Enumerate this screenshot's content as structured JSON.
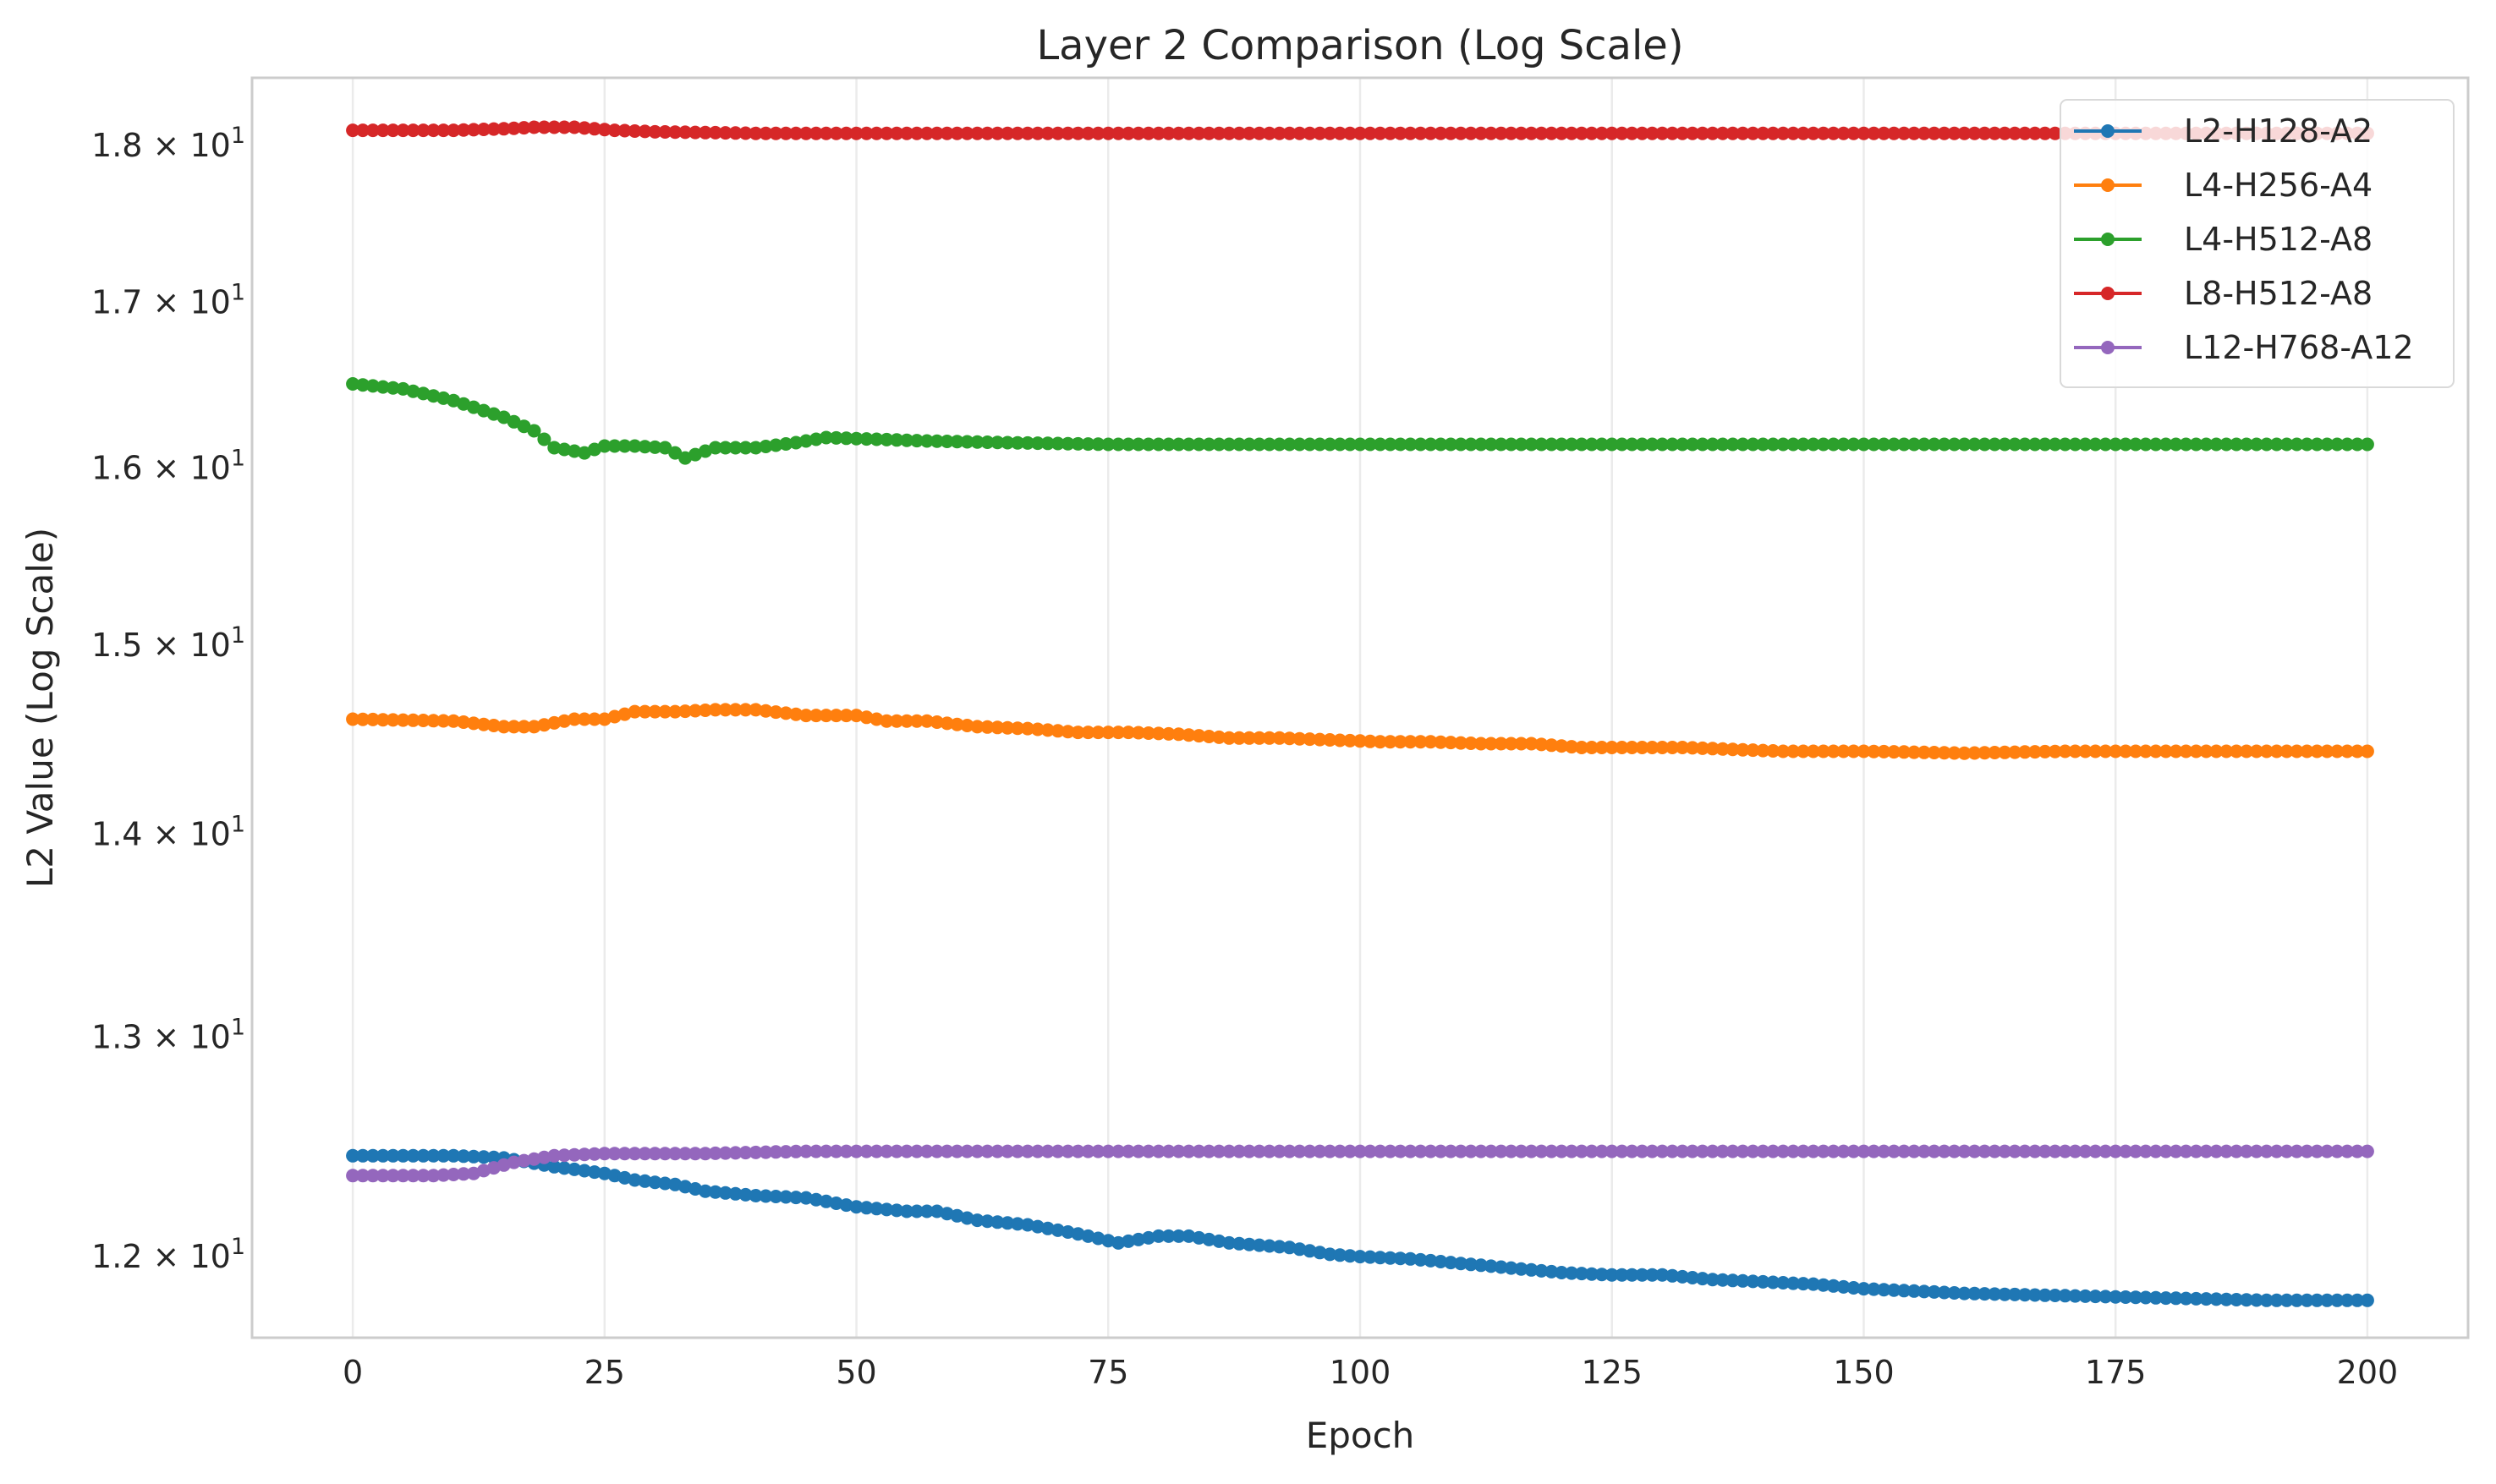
{
  "chart_data": {
    "type": "line",
    "title": "Layer 2 Comparison (Log Scale)",
    "xlabel": "Epoch",
    "ylabel": "L2 Value (Log Scale)",
    "yscale": "log",
    "xlim": [
      -10,
      210
    ],
    "ylim": [
      11.65,
      18.45
    ],
    "xticks": [
      0,
      25,
      50,
      75,
      100,
      125,
      150,
      175,
      200
    ],
    "xtick_labels": [
      "0",
      "25",
      "50",
      "75",
      "100",
      "125",
      "150",
      "175",
      "200"
    ],
    "yticks": [
      12,
      13,
      14,
      15,
      16,
      17,
      18
    ],
    "ytick_labels": [
      {
        "mantissa": "1.2",
        "exp": "1"
      },
      {
        "mantissa": "1.3",
        "exp": "1"
      },
      {
        "mantissa": "1.4",
        "exp": "1"
      },
      {
        "mantissa": "1.5",
        "exp": "1"
      },
      {
        "mantissa": "1.6",
        "exp": "1"
      },
      {
        "mantissa": "1.7",
        "exp": "1"
      },
      {
        "mantissa": "1.8",
        "exp": "1"
      }
    ],
    "grid": true,
    "legend_position": "top-right",
    "series": [
      {
        "name": "L2-H128-A2",
        "color": "#1f77b4",
        "points": [
          [
            0,
            12.45
          ],
          [
            10,
            12.45
          ],
          [
            15,
            12.44
          ],
          [
            20,
            12.4
          ],
          [
            25,
            12.37
          ],
          [
            28,
            12.34
          ],
          [
            32,
            12.32
          ],
          [
            35,
            12.29
          ],
          [
            40,
            12.27
          ],
          [
            45,
            12.26
          ],
          [
            50,
            12.22
          ],
          [
            55,
            12.2
          ],
          [
            58,
            12.2
          ],
          [
            62,
            12.16
          ],
          [
            67,
            12.14
          ],
          [
            72,
            12.1
          ],
          [
            76,
            12.06
          ],
          [
            80,
            12.09
          ],
          [
            83,
            12.09
          ],
          [
            87,
            12.06
          ],
          [
            93,
            12.04
          ],
          [
            97,
            12.01
          ],
          [
            100,
            12.0
          ],
          [
            105,
            11.99
          ],
          [
            110,
            11.97
          ],
          [
            115,
            11.95
          ],
          [
            120,
            11.93
          ],
          [
            125,
            11.92
          ],
          [
            130,
            11.92
          ],
          [
            135,
            11.9
          ],
          [
            140,
            11.89
          ],
          [
            145,
            11.88
          ],
          [
            150,
            11.86
          ],
          [
            155,
            11.85
          ],
          [
            160,
            11.84
          ],
          [
            170,
            11.83
          ],
          [
            180,
            11.82
          ],
          [
            190,
            11.81
          ],
          [
            200,
            11.81
          ]
        ]
      },
      {
        "name": "L4-H256-A4",
        "color": "#ff7f0e",
        "points": [
          [
            0,
            14.6
          ],
          [
            10,
            14.59
          ],
          [
            15,
            14.56
          ],
          [
            18,
            14.56
          ],
          [
            22,
            14.6
          ],
          [
            25,
            14.6
          ],
          [
            28,
            14.64
          ],
          [
            32,
            14.64
          ],
          [
            36,
            14.65
          ],
          [
            40,
            14.65
          ],
          [
            45,
            14.62
          ],
          [
            50,
            14.62
          ],
          [
            53,
            14.59
          ],
          [
            57,
            14.59
          ],
          [
            62,
            14.56
          ],
          [
            67,
            14.55
          ],
          [
            72,
            14.53
          ],
          [
            77,
            14.53
          ],
          [
            82,
            14.52
          ],
          [
            87,
            14.5
          ],
          [
            92,
            14.5
          ],
          [
            97,
            14.49
          ],
          [
            102,
            14.48
          ],
          [
            107,
            14.48
          ],
          [
            112,
            14.47
          ],
          [
            117,
            14.47
          ],
          [
            122,
            14.45
          ],
          [
            127,
            14.45
          ],
          [
            132,
            14.45
          ],
          [
            137,
            14.44
          ],
          [
            142,
            14.43
          ],
          [
            150,
            14.43
          ],
          [
            160,
            14.42
          ],
          [
            170,
            14.43
          ],
          [
            180,
            14.43
          ],
          [
            190,
            14.43
          ],
          [
            200,
            14.43
          ]
        ]
      },
      {
        "name": "L4-H512-A8",
        "color": "#2ca02c",
        "points": [
          [
            0,
            16.5
          ],
          [
            5,
            16.47
          ],
          [
            10,
            16.4
          ],
          [
            15,
            16.3
          ],
          [
            18,
            16.22
          ],
          [
            20,
            16.12
          ],
          [
            23,
            16.09
          ],
          [
            25,
            16.13
          ],
          [
            28,
            16.13
          ],
          [
            31,
            16.12
          ],
          [
            33,
            16.06
          ],
          [
            36,
            16.12
          ],
          [
            40,
            16.12
          ],
          [
            44,
            16.15
          ],
          [
            47,
            16.18
          ],
          [
            52,
            16.17
          ],
          [
            57,
            16.16
          ],
          [
            65,
            16.15
          ],
          [
            75,
            16.14
          ],
          [
            90,
            16.14
          ],
          [
            100,
            16.14
          ],
          [
            120,
            16.14
          ],
          [
            140,
            16.14
          ],
          [
            160,
            16.14
          ],
          [
            180,
            16.14
          ],
          [
            200,
            16.14
          ]
        ]
      },
      {
        "name": "L8-H512-A8",
        "color": "#d62728",
        "points": [
          [
            0,
            18.1
          ],
          [
            10,
            18.1
          ],
          [
            15,
            18.11
          ],
          [
            18,
            18.12
          ],
          [
            22,
            18.12
          ],
          [
            26,
            18.1
          ],
          [
            30,
            18.09
          ],
          [
            40,
            18.08
          ],
          [
            60,
            18.08
          ],
          [
            80,
            18.08
          ],
          [
            100,
            18.08
          ],
          [
            120,
            18.08
          ],
          [
            140,
            18.08
          ],
          [
            160,
            18.08
          ],
          [
            180,
            18.08
          ],
          [
            200,
            18.08
          ]
        ]
      },
      {
        "name": "L12-H768-A12",
        "color": "#9467bd",
        "points": [
          [
            0,
            12.36
          ],
          [
            8,
            12.36
          ],
          [
            12,
            12.37
          ],
          [
            16,
            12.42
          ],
          [
            20,
            12.45
          ],
          [
            25,
            12.46
          ],
          [
            35,
            12.46
          ],
          [
            45,
            12.47
          ],
          [
            60,
            12.47
          ],
          [
            80,
            12.47
          ],
          [
            100,
            12.47
          ],
          [
            120,
            12.47
          ],
          [
            140,
            12.47
          ],
          [
            160,
            12.47
          ],
          [
            180,
            12.47
          ],
          [
            200,
            12.47
          ]
        ]
      }
    ]
  }
}
